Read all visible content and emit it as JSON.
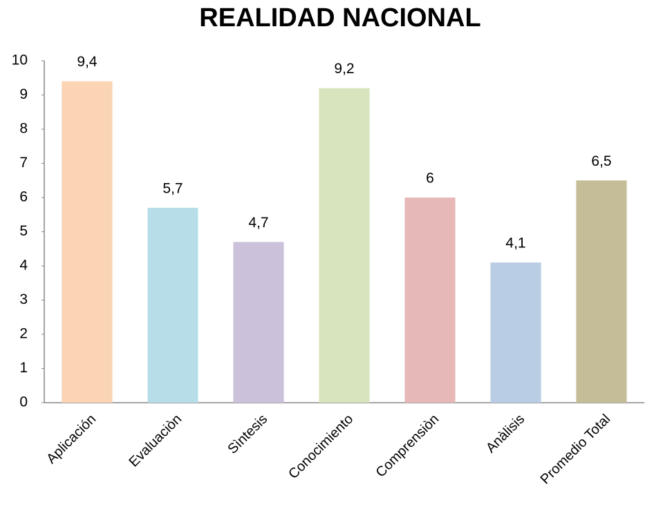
{
  "chart_data": {
    "type": "bar",
    "title": "REALIDAD NACIONAL",
    "categories": [
      "Aplicación",
      "Evaluaciòn",
      "Sìntesis",
      "Conocimiento",
      "Comprensiòn",
      "Anàlisis",
      "Promedio Total"
    ],
    "values": [
      9.4,
      5.7,
      4.7,
      9.2,
      6,
      4.1,
      6.5
    ],
    "value_labels": [
      "9,4",
      "5,7",
      "4,7",
      "9,2",
      "6",
      "4,1",
      "6,5"
    ],
    "colors": [
      "#fbd4b4",
      "#b7dee8",
      "#ccc1da",
      "#d7e4bd",
      "#e6b9b8",
      "#b9cde5",
      "#c4bd97"
    ],
    "ylim": [
      0,
      10
    ],
    "yticks": [
      0,
      1,
      2,
      3,
      4,
      5,
      6,
      7,
      8,
      9,
      10
    ],
    "grid": false
  }
}
